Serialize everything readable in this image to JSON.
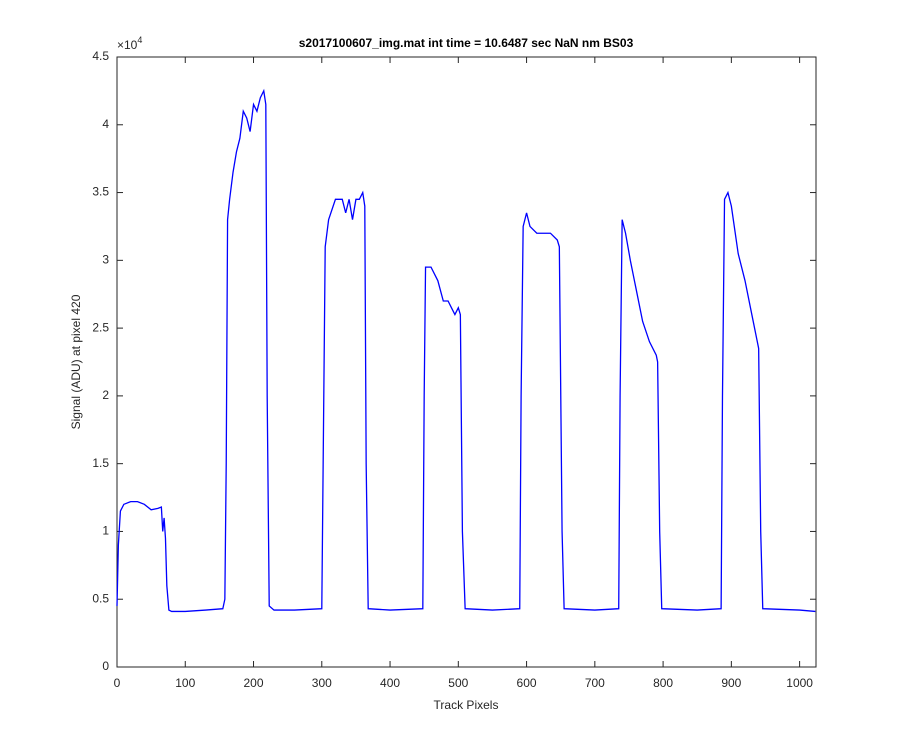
{
  "chart_data": {
    "type": "line",
    "title": "s2017100607_img.mat int time = 10.6487 sec  NaN nm BS03",
    "x_label": "Track Pixels",
    "y_label": "Signal (ADU) at pixel 420",
    "y_scale_label": "×10",
    "y_scale_power": "4",
    "xlim": [
      0,
      1024
    ],
    "ylim": [
      0,
      4.5
    ],
    "xticks": [
      0,
      100,
      200,
      300,
      400,
      500,
      600,
      700,
      800,
      900,
      1000
    ],
    "yticks": [
      0,
      0.5,
      1,
      1.5,
      2,
      2.5,
      3,
      3.5,
      4,
      4.5
    ],
    "grid": false,
    "series": [
      {
        "color": "#0000ff",
        "x": [
          0,
          2,
          5,
          10,
          20,
          30,
          40,
          50,
          60,
          65,
          67,
          69,
          71,
          73,
          76,
          80,
          100,
          130,
          155,
          158,
          160,
          162,
          165,
          170,
          175,
          180,
          185,
          190,
          195,
          200,
          205,
          210,
          215,
          218,
          220,
          223,
          230,
          260,
          300,
          302,
          305,
          310,
          320,
          330,
          335,
          340,
          345,
          350,
          355,
          360,
          363,
          365,
          368,
          400,
          448,
          450,
          452,
          460,
          470,
          478,
          485,
          490,
          495,
          500,
          503,
          506,
          510,
          550,
          590,
          592,
          595,
          600,
          605,
          615,
          625,
          635,
          645,
          648,
          652,
          655,
          700,
          735,
          737,
          740,
          745,
          752,
          760,
          770,
          780,
          790,
          792,
          795,
          798,
          850,
          885,
          887,
          890,
          895,
          900,
          910,
          920,
          930,
          938,
          940,
          943,
          946,
          1000,
          1023
        ],
        "values": [
          0.45,
          0.9,
          1.15,
          1.2,
          1.22,
          1.22,
          1.2,
          1.16,
          1.17,
          1.18,
          1.0,
          1.1,
          0.95,
          0.6,
          0.42,
          0.41,
          0.41,
          0.42,
          0.43,
          0.5,
          1.5,
          3.3,
          3.45,
          3.65,
          3.8,
          3.9,
          4.1,
          4.05,
          3.95,
          4.15,
          4.1,
          4.2,
          4.25,
          4.15,
          2.0,
          0.45,
          0.42,
          0.42,
          0.43,
          1.5,
          3.1,
          3.3,
          3.45,
          3.45,
          3.35,
          3.45,
          3.3,
          3.45,
          3.45,
          3.5,
          3.4,
          1.5,
          0.43,
          0.42,
          0.43,
          2.0,
          2.95,
          2.95,
          2.85,
          2.7,
          2.7,
          2.65,
          2.6,
          2.65,
          2.6,
          1.0,
          0.43,
          0.42,
          0.43,
          2.0,
          3.25,
          3.35,
          3.25,
          3.2,
          3.2,
          3.2,
          3.15,
          3.1,
          1.0,
          0.43,
          0.42,
          0.43,
          2.0,
          3.3,
          3.2,
          3.0,
          2.8,
          2.55,
          2.4,
          2.3,
          2.25,
          1.0,
          0.43,
          0.42,
          0.43,
          2.0,
          3.45,
          3.5,
          3.4,
          3.05,
          2.85,
          2.6,
          2.4,
          2.35,
          1.0,
          0.43,
          0.42,
          0.41
        ]
      }
    ]
  }
}
